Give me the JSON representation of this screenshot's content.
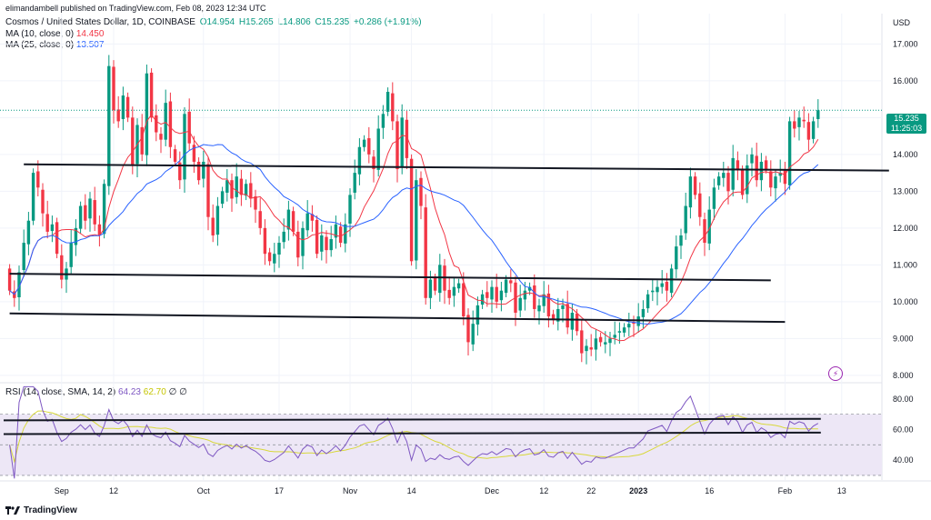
{
  "top_banner": "elimandambell published on TradingView.com, Feb 08, 2023 12:34 UTC",
  "legend": {
    "symbol": "Cosmos / United States Dollar, 1D, COINBASE",
    "o": "O14.954",
    "h": "H15.265",
    "l": "L14.806",
    "c": "C15.235",
    "chg": "+0.286 (+1.91%)",
    "ma10_label": "MA (10, close, 0)",
    "ma10_val": "14.450",
    "ma25_label": "MA (25, close, 0)",
    "ma25_val": "13.507",
    "rsi_label": "RSI (14, close, SMA, 14, 2)",
    "rsi_val": "64.23",
    "rsi_ma_val": "62.70",
    "rsi_extra": "∅ ∅"
  },
  "price_tag": {
    "price": "15.235",
    "countdown": "11:25:03"
  },
  "currency": "USD",
  "branding": "TradingView",
  "colors": {
    "up": "#089981",
    "down": "#f23645",
    "ma10": "#f23645",
    "ma25": "#2962ff",
    "rsi": "#7e57c2",
    "rsi_ma": "#d8d83a",
    "band": "#ede7f6"
  },
  "chart_data": {
    "type": "candlestick",
    "title": "Cosmos / United States Dollar, 1D, COINBASE",
    "ylim": [
      7.7,
      17.7
    ],
    "yticks": [
      "17.000",
      "16.000",
      "15.000",
      "14.000",
      "13.000",
      "12.000",
      "11.000",
      "10.000",
      "9.000",
      "8.000"
    ],
    "xticks": [
      {
        "label": "Sep",
        "i": 11
      },
      {
        "label": "12",
        "i": 22
      },
      {
        "label": "Oct",
        "i": 41
      },
      {
        "label": "17",
        "i": 57
      },
      {
        "label": "Nov",
        "i": 72
      },
      {
        "label": "14",
        "i": 85
      },
      {
        "label": "Dec",
        "i": 102
      },
      {
        "label": "12",
        "i": 113
      },
      {
        "label": "22",
        "i": 123
      },
      {
        "label": "2023",
        "i": 133
      },
      {
        "label": "16",
        "i": 148
      },
      {
        "label": "Feb",
        "i": 164
      },
      {
        "label": "13",
        "i": 176
      }
    ],
    "closes": [
      10.3,
      10.1,
      10.8,
      11.6,
      12.2,
      13.5,
      13.1,
      12.4,
      11.9,
      12.1,
      11.3,
      10.6,
      10.9,
      11.6,
      12.0,
      12.6,
      12.2,
      12.8,
      12.1,
      11.8,
      13.2,
      16.4,
      15.2,
      14.9,
      15.6,
      15.0,
      13.7,
      14.8,
      14.0,
      16.2,
      15.0,
      14.6,
      14.4,
      15.4,
      14.2,
      13.8,
      13.3,
      15.1,
      14.3,
      13.8,
      13.3,
      13.8,
      12.3,
      11.8,
      12.6,
      13.0,
      13.3,
      12.8,
      13.4,
      12.9,
      13.2,
      12.8,
      12.5,
      12.0,
      11.3,
      11.1,
      11.3,
      11.6,
      11.9,
      12.5,
      11.9,
      11.2,
      12.0,
      12.4,
      12.2,
      11.3,
      11.8,
      11.4,
      11.7,
      12.1,
      11.6,
      12.1,
      12.9,
      13.5,
      14.2,
      14.4,
      14.0,
      13.6,
      14.7,
      15.1,
      15.7,
      14.9,
      13.6,
      15.0,
      13.9,
      11.1,
      13.3,
      12.6,
      10.1,
      10.6,
      10.3,
      11.0,
      10.3,
      10.1,
      10.4,
      10.5,
      9.6,
      8.9,
      9.4,
      9.9,
      10.2,
      10.1,
      10.4,
      10.0,
      10.3,
      10.6,
      10.5,
      9.7,
      10.1,
      10.3,
      10.4,
      9.8,
      9.9,
      10.2,
      9.6,
      9.5,
      9.8,
      9.9,
      9.3,
      9.7,
      9.2,
      8.6,
      8.8,
      8.7,
      9.0,
      8.9,
      8.9,
      9.0,
      9.1,
      9.2,
      9.3,
      9.4,
      9.4,
      9.6,
      9.8,
      10.2,
      10.3,
      10.4,
      10.5,
      10.3,
      10.9,
      11.5,
      11.8,
      12.6,
      13.4,
      12.9,
      12.3,
      11.6,
      12.5,
      13.1,
      13.4,
      13.5,
      13.0,
      13.9,
      13.6,
      12.9,
      13.7,
      14.0,
      13.3,
      13.8,
      13.6,
      13.1,
      13.4,
      13.5,
      13.2,
      14.9,
      14.7,
      15.0,
      14.9,
      14.4,
      14.9,
      15.2
    ],
    "horizontal_lines": [
      {
        "from_i": 3,
        "to_i": 186,
        "y_start": 13.73,
        "y_end": 13.56
      },
      {
        "from_i": 0,
        "to_i": 161,
        "y_start": 10.76,
        "y_end": 10.58
      },
      {
        "from_i": 0,
        "to_i": 164,
        "y_start": 9.68,
        "y_end": 9.45
      }
    ],
    "rsi": {
      "ylim": [
        27,
        90
      ],
      "yticks": [
        "80.00",
        "60.00",
        "40.00"
      ],
      "band": [
        30,
        70
      ],
      "trendlines": [
        {
          "y_start": 66.0,
          "y_end": 67.0
        },
        {
          "y_start": 57.0,
          "y_end": 58.0
        }
      ]
    }
  }
}
